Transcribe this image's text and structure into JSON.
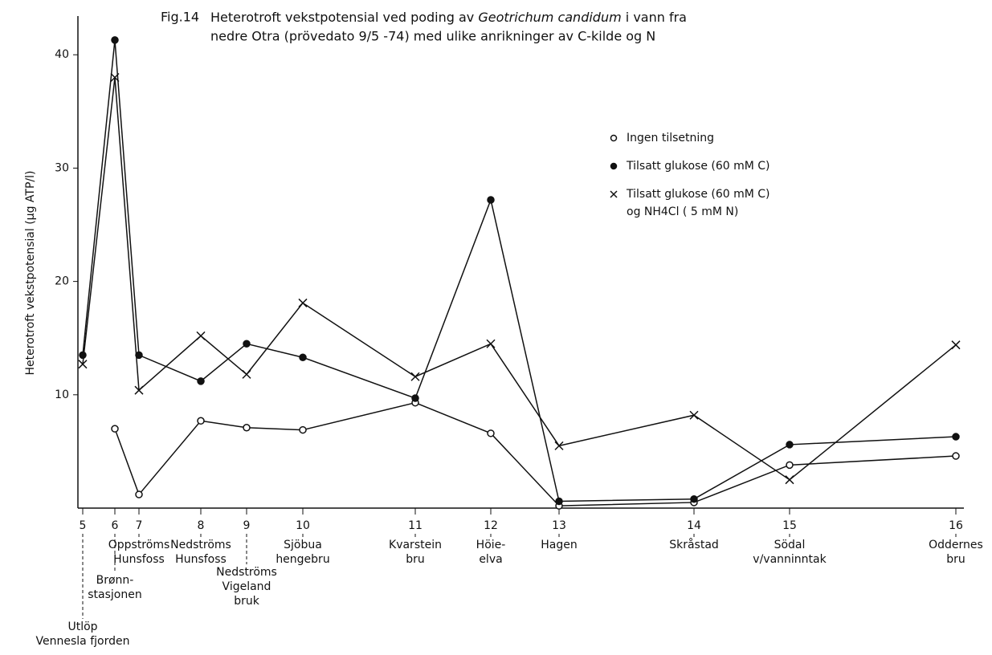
{
  "chart_data": {
    "type": "line",
    "title_prefix": "Fig.14",
    "title_line1_a": "Heterotroft vekstpotensial ved poding av",
    "title_line1_italic": "Geotrichum candidum",
    "title_line1_b": "i vann fra",
    "title_line2": "nedre Otra (prövedato 9/5 -74) med ulike anrikninger av C-kilde og N",
    "y_label": "Heterotroft vekstpotensial (µg ATP/l)",
    "categories": [
      "5",
      "6",
      "7",
      "8",
      "9",
      "10",
      "11",
      "12",
      "13",
      "14",
      "15",
      "16"
    ],
    "station_labels": [
      [
        "Utlöp",
        "Vennesla fjorden"
      ],
      [
        "Brønn-",
        "stasjonen"
      ],
      [
        "Oppströms",
        "Hunsfoss"
      ],
      [
        "Nedströms",
        "Hunsfoss"
      ],
      [
        "Nedströms",
        "Vigeland",
        "bruk"
      ],
      [
        "Sjöbua",
        "hengebru"
      ],
      [
        "Kvarstein",
        "bru"
      ],
      [
        "Höie-",
        "elva"
      ],
      [
        "Hagen"
      ],
      [
        "Skråstad"
      ],
      [
        "Södal",
        "v/vanninntak"
      ],
      [
        "Oddernes",
        "bru"
      ]
    ],
    "series": [
      {
        "name": "Ingen tilsetning",
        "marker": "open-circle",
        "color": "#111",
        "values": [
          null,
          7.0,
          1.2,
          7.7,
          7.1,
          6.9,
          9.3,
          6.6,
          0.2,
          0.5,
          3.8,
          4.6
        ]
      },
      {
        "name": "Tilsatt glukose (60 mM C)",
        "marker": "filled-circle",
        "color": "#111",
        "values": [
          13.5,
          41.3,
          13.5,
          11.2,
          14.5,
          13.3,
          9.7,
          27.2,
          0.6,
          0.8,
          5.6,
          6.3
        ]
      },
      {
        "name": "Tilsatt glukose (60 mM C)",
        "name_line2": "og NH4Cl      ( 5 mM N)",
        "marker": "cross",
        "color": "#111",
        "values": [
          12.7,
          38.0,
          10.4,
          15.2,
          11.8,
          18.1,
          11.6,
          14.5,
          5.5,
          8.2,
          2.5,
          14.4
        ]
      }
    ],
    "ylim": [
      0,
      42
    ],
    "yticks": [
      10,
      20,
      30,
      40
    ]
  }
}
